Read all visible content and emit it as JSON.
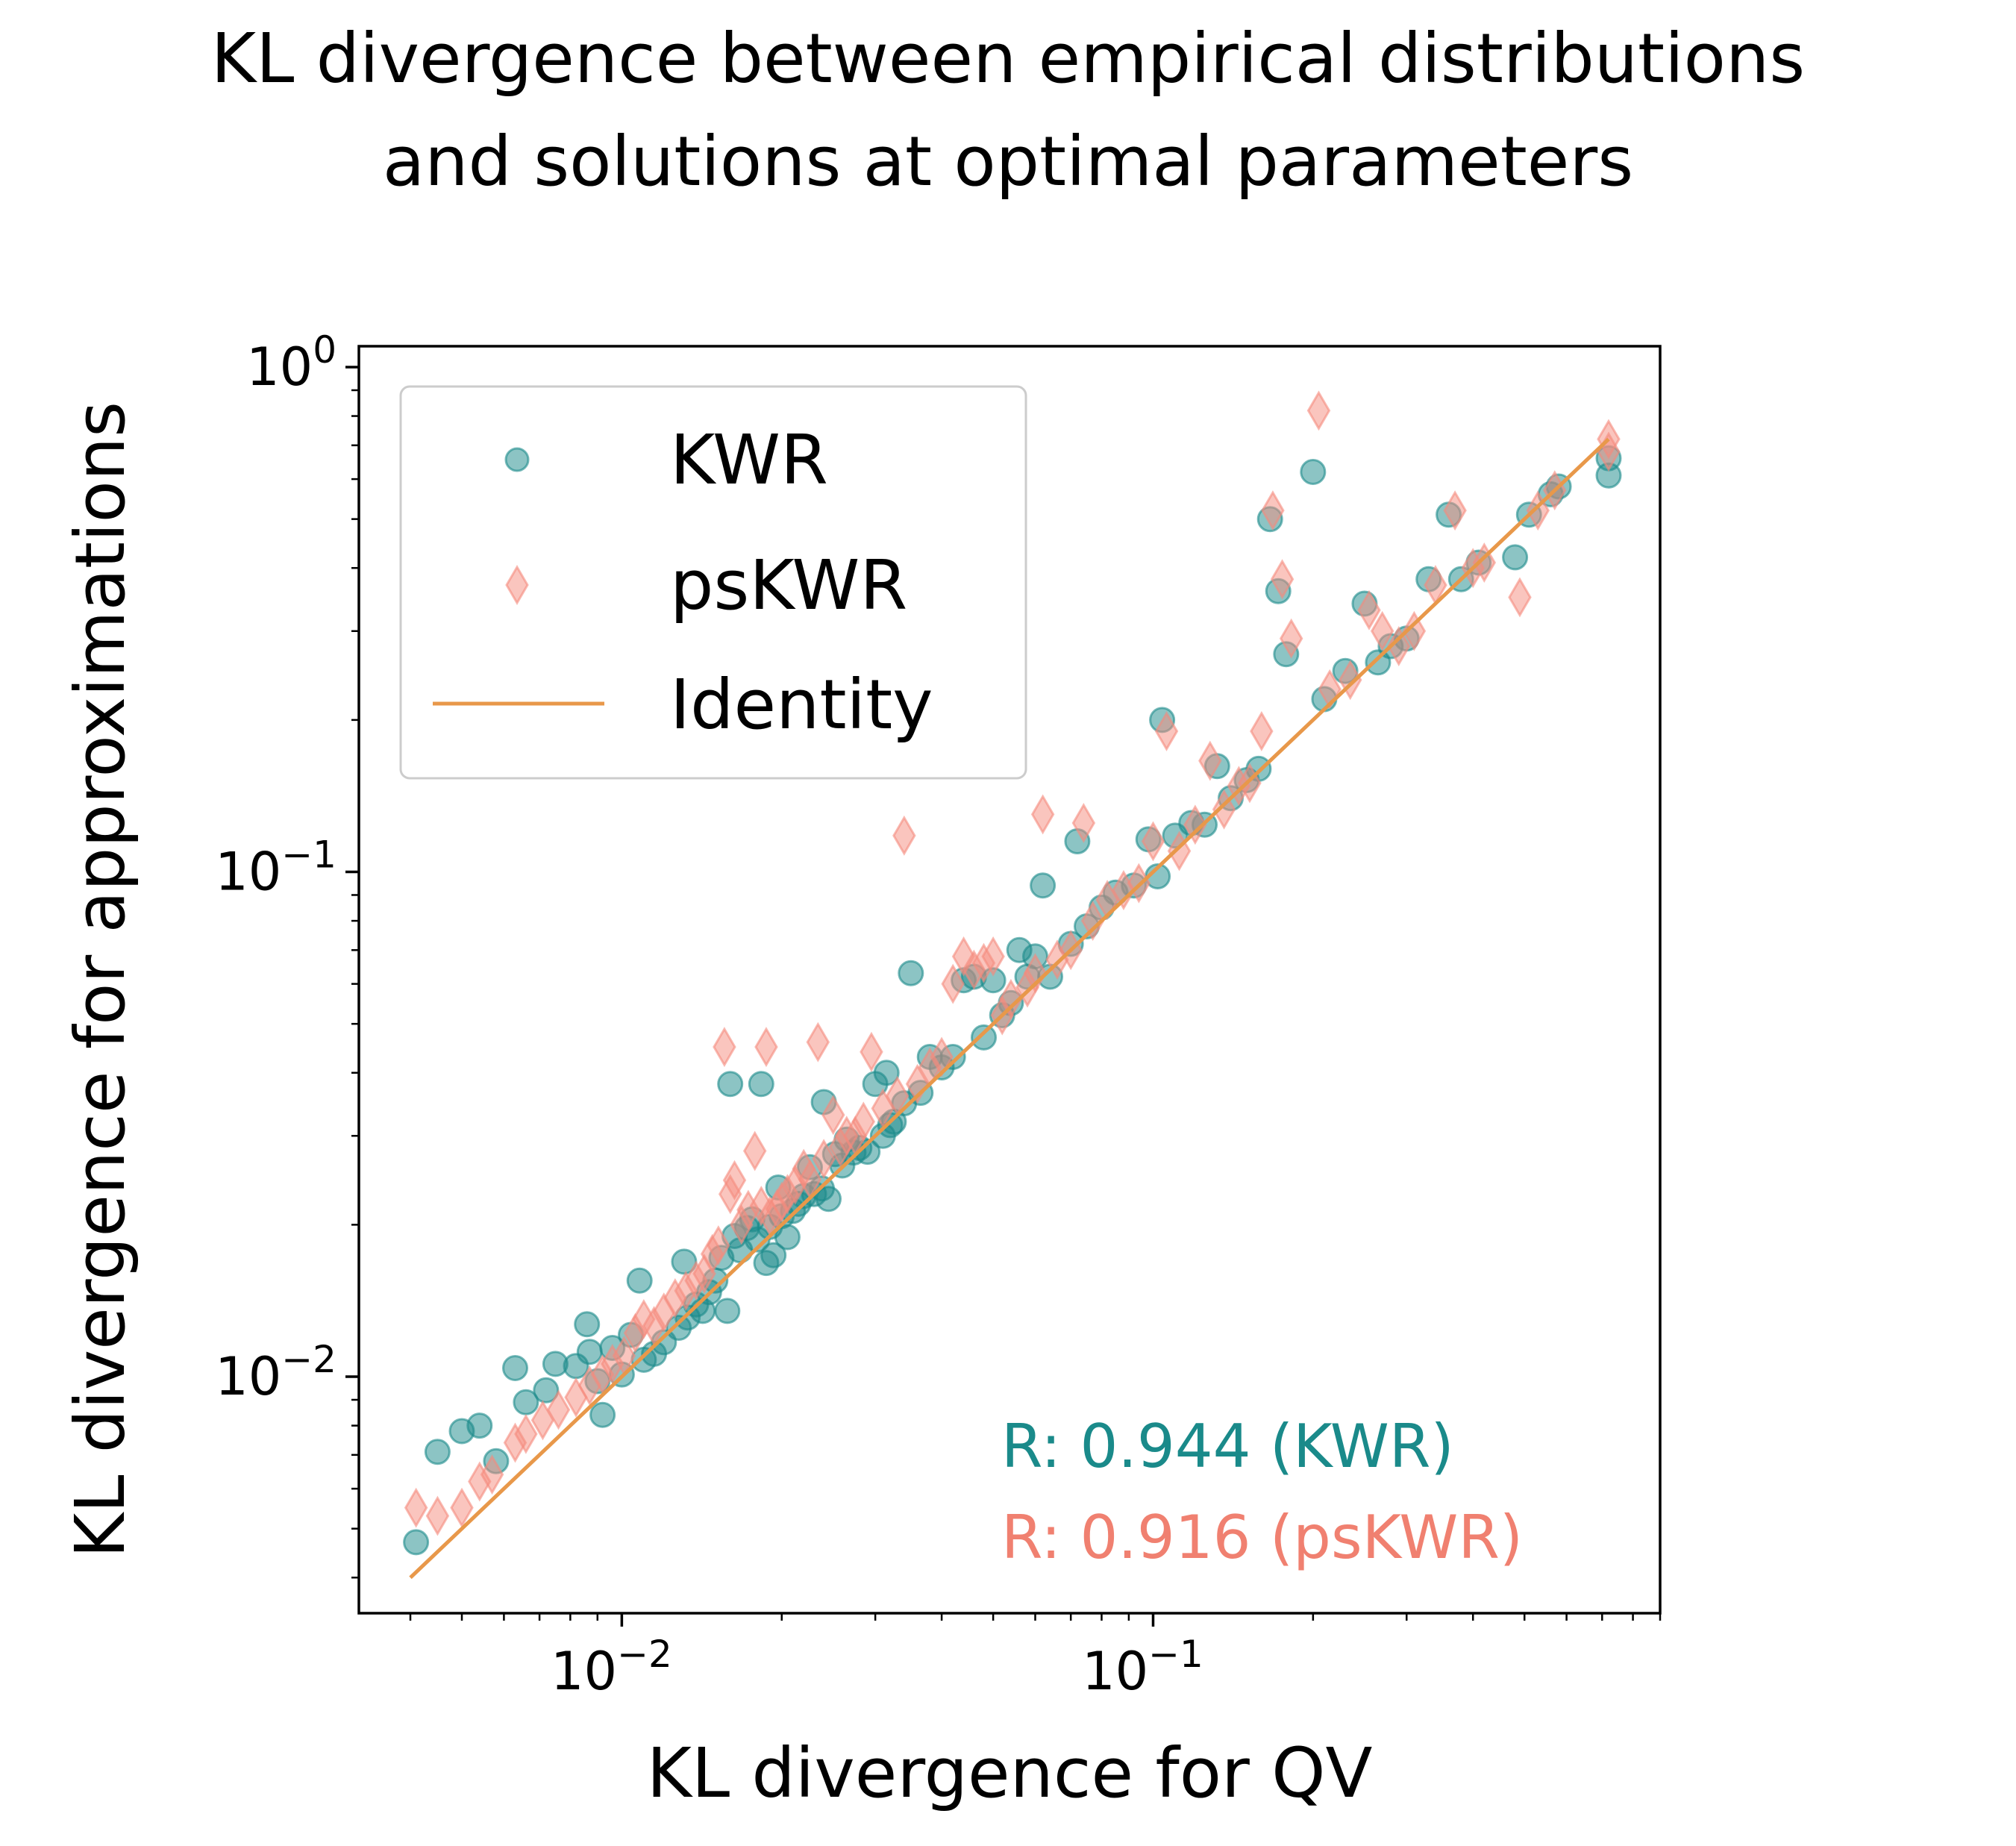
{
  "chart_data": {
    "type": "scatter",
    "title_lines": [
      "KL divergence between empirical distributions",
      "and solutions at optimal parameters"
    ],
    "xlabel": "KL divergence for QV",
    "ylabel": "KL divergence for approximations",
    "xscale": "log",
    "yscale": "log",
    "xlim": [
      0.0032,
      0.9
    ],
    "ylim": [
      0.0034,
      1.1
    ],
    "x_ticks": [
      {
        "value": 0.01,
        "base": "10",
        "exp": "−2"
      },
      {
        "value": 0.1,
        "base": "10",
        "exp": "−1"
      }
    ],
    "y_ticks": [
      {
        "value": 0.01,
        "base": "10",
        "exp": "−2"
      },
      {
        "value": 0.1,
        "base": "10",
        "exp": "−1"
      },
      {
        "value": 1,
        "base": "10",
        "exp": "0"
      }
    ],
    "grid": false,
    "legend_position": "top-left",
    "legend": [
      {
        "label": "KWR",
        "marker": "circle"
      },
      {
        "label": "psKWR",
        "marker": "diamond"
      },
      {
        "label": "Identity",
        "marker": "line"
      }
    ],
    "annotations": [
      {
        "text": "R: 0.944 (KWR)",
        "color": "#1a8a8a"
      },
      {
        "text": "R: 0.916 (psKWR)",
        "color": "#f08070"
      }
    ],
    "colors": {
      "KWR": "#1a8a8a",
      "psKWR": "#f58b7d",
      "Identity": "#e8984a"
    },
    "identity": {
      "x": [
        0.004,
        0.72
      ],
      "y": [
        0.004,
        0.72
      ]
    },
    "series": [
      {
        "name": "KWR",
        "marker": "circle",
        "points": [
          [
            0.0041,
            0.0047
          ],
          [
            0.0045,
            0.0071
          ],
          [
            0.005,
            0.0078
          ],
          [
            0.0054,
            0.008
          ],
          [
            0.0058,
            0.0068
          ],
          [
            0.0063,
            0.0104
          ],
          [
            0.0066,
            0.0089
          ],
          [
            0.0072,
            0.0094
          ],
          [
            0.0075,
            0.0106
          ],
          [
            0.0082,
            0.0105
          ],
          [
            0.0086,
            0.0127
          ],
          [
            0.0087,
            0.0112
          ],
          [
            0.009,
            0.0098
          ],
          [
            0.0092,
            0.0084
          ],
          [
            0.0096,
            0.0114
          ],
          [
            0.01,
            0.0101
          ],
          [
            0.0104,
            0.0121
          ],
          [
            0.0108,
            0.0155
          ],
          [
            0.011,
            0.0108
          ],
          [
            0.0115,
            0.0111
          ],
          [
            0.012,
            0.0117
          ],
          [
            0.0128,
            0.0125
          ],
          [
            0.0131,
            0.0169
          ],
          [
            0.0133,
            0.0131
          ],
          [
            0.0138,
            0.0139
          ],
          [
            0.0142,
            0.0135
          ],
          [
            0.0146,
            0.0147
          ],
          [
            0.015,
            0.0155
          ],
          [
            0.0154,
            0.0172
          ],
          [
            0.0158,
            0.0135
          ],
          [
            0.016,
            0.038
          ],
          [
            0.0163,
            0.019
          ],
          [
            0.0167,
            0.0178
          ],
          [
            0.0172,
            0.0197
          ],
          [
            0.0176,
            0.0205
          ],
          [
            0.018,
            0.0187
          ],
          [
            0.0183,
            0.038
          ],
          [
            0.0187,
            0.0168
          ],
          [
            0.019,
            0.0198
          ],
          [
            0.0193,
            0.0174
          ],
          [
            0.0197,
            0.0237
          ],
          [
            0.02,
            0.0208
          ],
          [
            0.0205,
            0.0189
          ],
          [
            0.021,
            0.0213
          ],
          [
            0.0215,
            0.022
          ],
          [
            0.022,
            0.0228
          ],
          [
            0.0226,
            0.026
          ],
          [
            0.023,
            0.023
          ],
          [
            0.0238,
            0.0236
          ],
          [
            0.024,
            0.035
          ],
          [
            0.0245,
            0.0225
          ],
          [
            0.0252,
            0.0276
          ],
          [
            0.026,
            0.0262
          ],
          [
            0.0265,
            0.0295
          ],
          [
            0.0273,
            0.0278
          ],
          [
            0.028,
            0.0284
          ],
          [
            0.029,
            0.0279
          ],
          [
            0.03,
            0.038
          ],
          [
            0.031,
            0.03
          ],
          [
            0.0315,
            0.04
          ],
          [
            0.032,
            0.0315
          ],
          [
            0.0325,
            0.032
          ],
          [
            0.034,
            0.0348
          ],
          [
            0.035,
            0.063
          ],
          [
            0.0365,
            0.0365
          ],
          [
            0.038,
            0.043
          ],
          [
            0.04,
            0.041
          ],
          [
            0.042,
            0.043
          ],
          [
            0.044,
            0.061
          ],
          [
            0.046,
            0.062
          ],
          [
            0.048,
            0.047
          ],
          [
            0.05,
            0.061
          ],
          [
            0.052,
            0.052
          ],
          [
            0.054,
            0.055
          ],
          [
            0.056,
            0.07
          ],
          [
            0.058,
            0.062
          ],
          [
            0.06,
            0.068
          ],
          [
            0.062,
            0.094
          ],
          [
            0.064,
            0.062
          ],
          [
            0.07,
            0.072
          ],
          [
            0.072,
            0.115
          ],
          [
            0.075,
            0.078
          ],
          [
            0.08,
            0.085
          ],
          [
            0.085,
            0.091
          ],
          [
            0.092,
            0.094
          ],
          [
            0.098,
            0.116
          ],
          [
            0.102,
            0.098
          ],
          [
            0.104,
            0.2
          ],
          [
            0.11,
            0.118
          ],
          [
            0.118,
            0.125
          ],
          [
            0.125,
            0.124
          ],
          [
            0.132,
            0.162
          ],
          [
            0.14,
            0.14
          ],
          [
            0.15,
            0.152
          ],
          [
            0.158,
            0.16
          ],
          [
            0.166,
            0.5
          ],
          [
            0.172,
            0.36
          ],
          [
            0.178,
            0.27
          ],
          [
            0.2,
            0.62
          ],
          [
            0.21,
            0.22
          ],
          [
            0.23,
            0.25
          ],
          [
            0.25,
            0.34
          ],
          [
            0.265,
            0.26
          ],
          [
            0.28,
            0.28
          ],
          [
            0.3,
            0.29
          ],
          [
            0.33,
            0.38
          ],
          [
            0.36,
            0.51
          ],
          [
            0.38,
            0.38
          ],
          [
            0.41,
            0.41
          ],
          [
            0.48,
            0.42
          ],
          [
            0.51,
            0.51
          ],
          [
            0.56,
            0.56
          ],
          [
            0.58,
            0.58
          ],
          [
            0.72,
            0.61
          ],
          [
            0.72,
            0.66
          ]
        ]
      },
      {
        "name": "psKWR",
        "marker": "diamond",
        "points": [
          [
            0.0041,
            0.0055
          ],
          [
            0.0045,
            0.0053
          ],
          [
            0.005,
            0.0055
          ],
          [
            0.0054,
            0.0062
          ],
          [
            0.0057,
            0.0064
          ],
          [
            0.0063,
            0.0074
          ],
          [
            0.0066,
            0.0077
          ],
          [
            0.0071,
            0.0082
          ],
          [
            0.0076,
            0.0086
          ],
          [
            0.0082,
            0.0091
          ],
          [
            0.0087,
            0.0096
          ],
          [
            0.0092,
            0.0101
          ],
          [
            0.0096,
            0.0106
          ],
          [
            0.0101,
            0.011
          ],
          [
            0.0106,
            0.0122
          ],
          [
            0.011,
            0.013
          ],
          [
            0.0115,
            0.0126
          ],
          [
            0.012,
            0.0134
          ],
          [
            0.0126,
            0.0143
          ],
          [
            0.0132,
            0.0148
          ],
          [
            0.0138,
            0.0155
          ],
          [
            0.0143,
            0.016
          ],
          [
            0.0148,
            0.0175
          ],
          [
            0.0152,
            0.0182
          ],
          [
            0.0156,
            0.045
          ],
          [
            0.016,
            0.023
          ],
          [
            0.0163,
            0.0245
          ],
          [
            0.0168,
            0.02
          ],
          [
            0.0173,
            0.0214
          ],
          [
            0.0178,
            0.028
          ],
          [
            0.0183,
            0.0218
          ],
          [
            0.0187,
            0.045
          ],
          [
            0.019,
            0.0208
          ],
          [
            0.0196,
            0.0215
          ],
          [
            0.02,
            0.0222
          ],
          [
            0.0205,
            0.023
          ],
          [
            0.0212,
            0.024
          ],
          [
            0.022,
            0.0258
          ],
          [
            0.0226,
            0.0246
          ],
          [
            0.0234,
            0.046
          ],
          [
            0.024,
            0.027
          ],
          [
            0.025,
            0.033
          ],
          [
            0.0258,
            0.0285
          ],
          [
            0.0265,
            0.03
          ],
          [
            0.0275,
            0.03
          ],
          [
            0.0285,
            0.032
          ],
          [
            0.0295,
            0.044
          ],
          [
            0.031,
            0.034
          ],
          [
            0.033,
            0.036
          ],
          [
            0.034,
            0.118
          ],
          [
            0.036,
            0.038
          ],
          [
            0.038,
            0.041
          ],
          [
            0.04,
            0.043
          ],
          [
            0.042,
            0.06
          ],
          [
            0.044,
            0.068
          ],
          [
            0.046,
            0.064
          ],
          [
            0.048,
            0.066
          ],
          [
            0.05,
            0.068
          ],
          [
            0.052,
            0.052
          ],
          [
            0.054,
            0.056
          ],
          [
            0.058,
            0.059
          ],
          [
            0.06,
            0.063
          ],
          [
            0.062,
            0.13
          ],
          [
            0.066,
            0.067
          ],
          [
            0.07,
            0.07
          ],
          [
            0.074,
            0.125
          ],
          [
            0.077,
            0.08
          ],
          [
            0.082,
            0.088
          ],
          [
            0.088,
            0.092
          ],
          [
            0.094,
            0.095
          ],
          [
            0.1,
            0.115
          ],
          [
            0.106,
            0.19
          ],
          [
            0.112,
            0.11
          ],
          [
            0.12,
            0.124
          ],
          [
            0.128,
            0.166
          ],
          [
            0.136,
            0.133
          ],
          [
            0.145,
            0.148
          ],
          [
            0.152,
            0.15
          ],
          [
            0.16,
            0.19
          ],
          [
            0.168,
            0.52
          ],
          [
            0.175,
            0.38
          ],
          [
            0.182,
            0.29
          ],
          [
            0.205,
            0.82
          ],
          [
            0.215,
            0.23
          ],
          [
            0.235,
            0.24
          ],
          [
            0.255,
            0.33
          ],
          [
            0.27,
            0.3
          ],
          [
            0.29,
            0.28
          ],
          [
            0.31,
            0.3
          ],
          [
            0.34,
            0.37
          ],
          [
            0.37,
            0.52
          ],
          [
            0.4,
            0.4
          ],
          [
            0.42,
            0.41
          ],
          [
            0.49,
            0.35
          ],
          [
            0.53,
            0.52
          ],
          [
            0.57,
            0.57
          ],
          [
            0.72,
            0.68
          ],
          [
            0.72,
            0.72
          ]
        ]
      }
    ]
  }
}
